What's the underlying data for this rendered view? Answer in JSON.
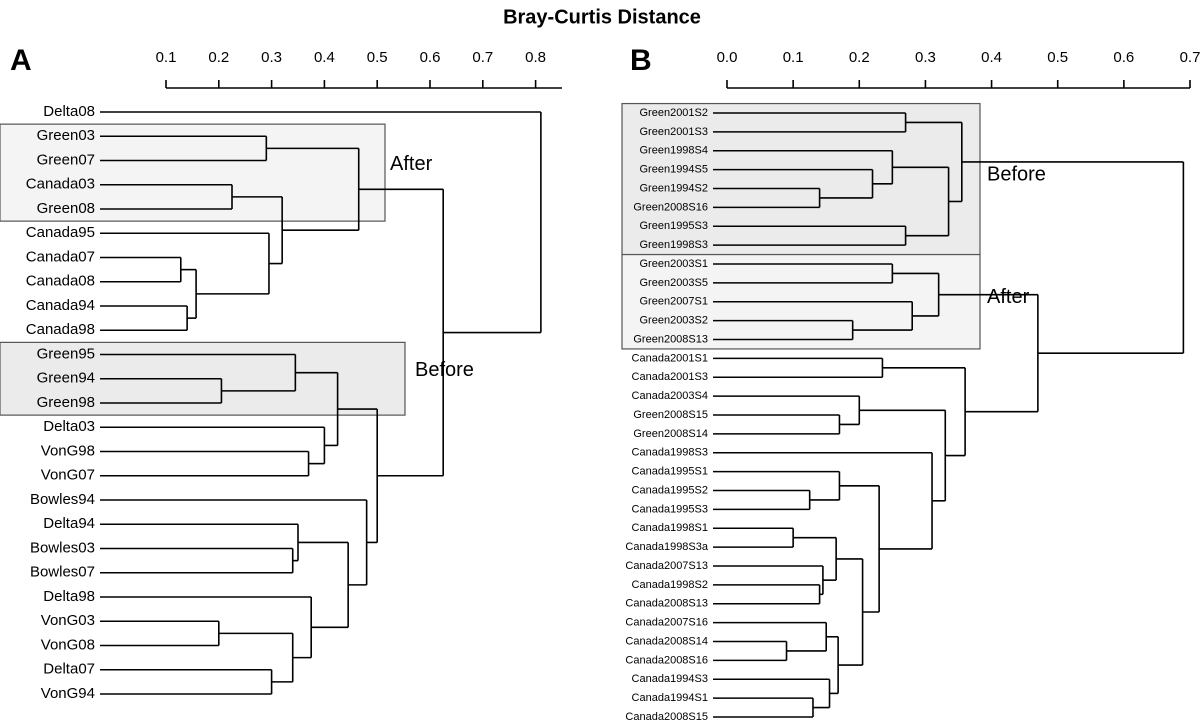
{
  "chart_data": {
    "type": "dendrogram",
    "title": "Bray-Curtis Distance",
    "panels": [
      {
        "label": "A",
        "xlim": [
          0.1,
          0.85
        ],
        "xticks": [
          0.1,
          0.2,
          0.3,
          0.4,
          0.5,
          0.6,
          0.7,
          0.8
        ],
        "annotations": [
          "After",
          "Before"
        ],
        "tree": {
          "height": 0.81,
          "children": [
            "Delta08",
            {
              "height": 0.625,
              "children": [
                {
                  "height": 0.465,
                  "children": [
                    {
                      "height": 0.29,
                      "children": [
                        "Green03",
                        "Green07"
                      ]
                    },
                    {
                      "height": 0.32,
                      "children": [
                        {
                          "height": 0.225,
                          "children": [
                            "Canada03",
                            "Green08"
                          ]
                        },
                        {
                          "height": 0.295,
                          "children": [
                            "Canada95",
                            {
                              "height": 0.157,
                              "children": [
                                {
                                  "height": 0.128,
                                  "children": [
                                    "Canada07",
                                    "Canada08"
                                  ]
                                },
                                {
                                  "height": 0.14,
                                  "children": [
                                    "Canada94",
                                    "Canada98"
                                  ]
                                }
                              ]
                            }
                          ]
                        }
                      ]
                    }
                  ]
                },
                {
                  "height": 0.5,
                  "children": [
                    {
                      "height": 0.425,
                      "children": [
                        {
                          "height": 0.345,
                          "children": [
                            "Green95",
                            {
                              "height": 0.205,
                              "children": [
                                "Green94",
                                "Green98"
                              ]
                            }
                          ]
                        },
                        {
                          "height": 0.4,
                          "children": [
                            "Delta03",
                            {
                              "height": 0.37,
                              "children": [
                                "VonG98",
                                "VonG07"
                              ]
                            }
                          ]
                        }
                      ]
                    },
                    {
                      "height": 0.48,
                      "children": [
                        "Bowles94",
                        {
                          "height": 0.445,
                          "children": [
                            {
                              "height": 0.35,
                              "children": [
                                "Delta94",
                                {
                                  "height": 0.34,
                                  "children": [
                                    "Bowles03",
                                    "Bowles07"
                                  ]
                                }
                              ]
                            },
                            {
                              "height": 0.375,
                              "children": [
                                "Delta98",
                                {
                                  "height": 0.34,
                                  "children": [
                                    {
                                      "height": 0.2,
                                      "children": [
                                        "VonG03",
                                        "VonG08"
                                      ]
                                    },
                                    {
                                      "height": 0.3,
                                      "children": [
                                        "Delta07",
                                        "VonG94"
                                      ]
                                    }
                                  ]
                                }
                              ]
                            }
                          ]
                        }
                      ]
                    }
                  ]
                }
              ]
            }
          ]
        }
      },
      {
        "label": "B",
        "xlim": [
          0,
          0.7
        ],
        "xticks": [
          {
            "value": 0,
            "label": "0.0"
          },
          0.1,
          0.2,
          0.3,
          0.4,
          0.5,
          0.6,
          0.7
        ],
        "annotations": [
          "Before",
          "After"
        ],
        "tree": {
          "height": 0.69,
          "children": [
            {
              "height": 0.355,
              "children": [
                {
                  "height": 0.27,
                  "children": [
                    "Green2001S2",
                    "Green2001S3"
                  ]
                },
                {
                  "height": 0.335,
                  "children": [
                    {
                      "height": 0.25,
                      "children": [
                        "Green1998S4",
                        {
                          "height": 0.22,
                          "children": [
                            "Green1994S5",
                            {
                              "height": 0.14,
                              "children": [
                                "Green1994S2",
                                "Green2008S16"
                              ]
                            }
                          ]
                        }
                      ]
                    },
                    {
                      "height": 0.27,
                      "children": [
                        "Green1995S3",
                        "Green1998S3"
                      ]
                    }
                  ]
                }
              ]
            },
            {
              "height": 0.47,
              "children": [
                {
                  "height": 0.32,
                  "children": [
                    {
                      "height": 0.25,
                      "children": [
                        "Green2003S1",
                        "Green2003S5"
                      ]
                    },
                    {
                      "height": 0.28,
                      "children": [
                        "Green2007S1",
                        {
                          "height": 0.19,
                          "children": [
                            "Green2003S2",
                            "Green2008S13"
                          ]
                        }
                      ]
                    }
                  ]
                },
                {
                  "height": 0.36,
                  "children": [
                    {
                      "height": 0.235,
                      "children": [
                        "Canada2001S1",
                        "Canada2001S3"
                      ]
                    },
                    {
                      "height": 0.33,
                      "children": [
                        {
                          "height": 0.2,
                          "children": [
                            "Canada2003S4",
                            {
                              "height": 0.17,
                              "children": [
                                "Green2008S15",
                                "Green2008S14"
                              ]
                            }
                          ]
                        },
                        {
                          "height": 0.31,
                          "children": [
                            "Canada1998S3",
                            {
                              "height": 0.23,
                              "children": [
                                {
                                  "height": 0.17,
                                  "children": [
                                    "Canada1995S1",
                                    {
                                      "height": 0.125,
                                      "children": [
                                        "Canada1995S2",
                                        "Canada1995S3"
                                      ]
                                    }
                                  ]
                                },
                                {
                                  "height": 0.205,
                                  "children": [
                                    {
                                      "height": 0.165,
                                      "children": [
                                        {
                                          "height": 0.1,
                                          "children": [
                                            "Canada1998S1",
                                            "Canada1998S3a"
                                          ]
                                        },
                                        {
                                          "height": 0.145,
                                          "children": [
                                            "Canada2007S13",
                                            {
                                              "height": 0.14,
                                              "children": [
                                                "Canada1998S2",
                                                "Canada2008S13"
                                              ]
                                            }
                                          ]
                                        }
                                      ]
                                    },
                                    {
                                      "height": 0.168,
                                      "children": [
                                        {
                                          "height": 0.15,
                                          "children": [
                                            "Canada2007S16",
                                            {
                                              "height": 0.09,
                                              "children": [
                                                "Canada2008S14",
                                                "Canada2008S16"
                                              ]
                                            }
                                          ]
                                        },
                                        {
                                          "height": 0.155,
                                          "children": [
                                            "Canada1994S3",
                                            {
                                              "height": 0.13,
                                              "children": [
                                                "Canada1994S1",
                                                "Canada2008S15"
                                              ]
                                            }
                                          ]
                                        }
                                      ]
                                    }
                                  ]
                                }
                              ]
                            }
                          ]
                        }
                      ]
                    }
                  ]
                }
              ]
            }
          ]
        }
      }
    ]
  }
}
